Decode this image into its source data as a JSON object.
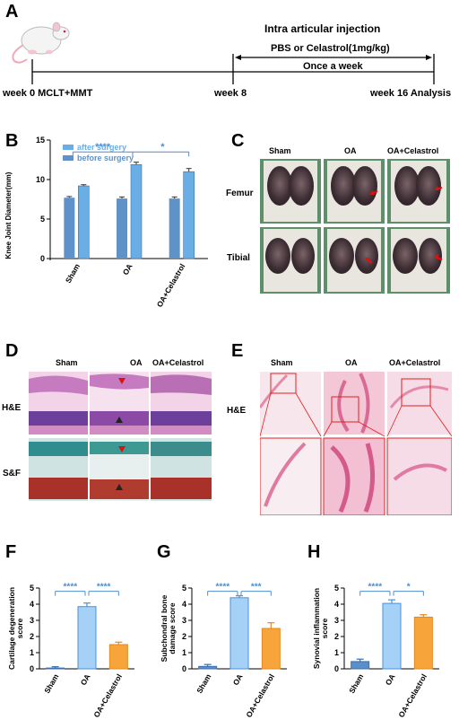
{
  "panel_labels": {
    "a": "A",
    "b": "B",
    "c": "C",
    "d": "D",
    "e": "E",
    "f": "F",
    "g": "G",
    "h": "H"
  },
  "timeline": {
    "title": "Intra articular injection",
    "treatment": "PBS or Celastrol(1mg/kg)",
    "frequency": "Once a week",
    "week0": "week 0 MCLT+MMT",
    "week8": "week 8",
    "week16": "week 16 Analysis"
  },
  "panel_b": {
    "ylabel": "Knee Joint Diameter(mm)",
    "legend": [
      "after surgery",
      "before surgery"
    ],
    "sig1": "****",
    "sig2": "*",
    "colors": {
      "after": "#6aaee6",
      "before": "#5f92c8"
    }
  },
  "panel_c": {
    "cols": [
      "Sham",
      "OA",
      "OA+Celastrol"
    ],
    "rows": [
      "Femur",
      "Tibial"
    ]
  },
  "panel_d": {
    "cols": [
      "Sham",
      "OA",
      "OA+Celastrol"
    ],
    "rows": [
      "H&E",
      "S&F"
    ]
  },
  "panel_e": {
    "cols": [
      "Sham",
      "OA",
      "OA+Celastrol"
    ],
    "rows": [
      "H&E"
    ]
  },
  "colors": {
    "sham": "#5b8fc9",
    "oa": "#a6d1f7",
    "celastrol": "#f7a53b",
    "sig": "#4f8ccf"
  },
  "chart_data": [
    {
      "type": "bar",
      "title": "",
      "ylabel": "Knee Joint Diameter(mm)",
      "categories": [
        "Sham",
        "OA",
        "OA+Celastrol"
      ],
      "ylim": [
        0,
        15
      ],
      "yticks": [
        0,
        5,
        10,
        15
      ],
      "series": [
        {
          "name": "before surgery",
          "values": [
            7.7,
            7.6,
            7.6
          ],
          "errors": [
            0.15,
            0.2,
            0.2
          ]
        },
        {
          "name": "after surgery",
          "values": [
            9.2,
            11.9,
            11.0
          ],
          "errors": [
            0.15,
            0.3,
            0.4
          ]
        }
      ]
    },
    {
      "type": "bar",
      "title": "",
      "ylabel": "Cartilage degeneration score",
      "categories": [
        "Sham",
        "OA",
        "OA+Celastrol"
      ],
      "ylim": [
        0,
        5
      ],
      "yticks": [
        0,
        1,
        2,
        3,
        4,
        5
      ],
      "values": [
        0.05,
        3.85,
        1.5
      ],
      "errors": [
        0.08,
        0.22,
        0.15
      ],
      "significance": [
        "****",
        "****"
      ]
    },
    {
      "type": "bar",
      "title": "",
      "ylabel": "Subchondral bone damage score",
      "categories": [
        "Sham",
        "OA",
        "OA+Celastrol"
      ],
      "ylim": [
        0,
        5
      ],
      "yticks": [
        0,
        1,
        2,
        3,
        4,
        5
      ],
      "values": [
        0.15,
        4.4,
        2.5
      ],
      "errors": [
        0.12,
        0.12,
        0.35
      ],
      "significance": [
        "****",
        "***"
      ]
    },
    {
      "type": "bar",
      "title": "",
      "ylabel": "Synovial inflammation score",
      "categories": [
        "Sham",
        "OA",
        "OA+Celastrol"
      ],
      "ylim": [
        0,
        5
      ],
      "yticks": [
        0,
        1,
        2,
        3,
        4,
        5
      ],
      "values": [
        0.45,
        4.05,
        3.2
      ],
      "errors": [
        0.15,
        0.22,
        0.15
      ],
      "significance": [
        "****",
        "*"
      ]
    }
  ]
}
